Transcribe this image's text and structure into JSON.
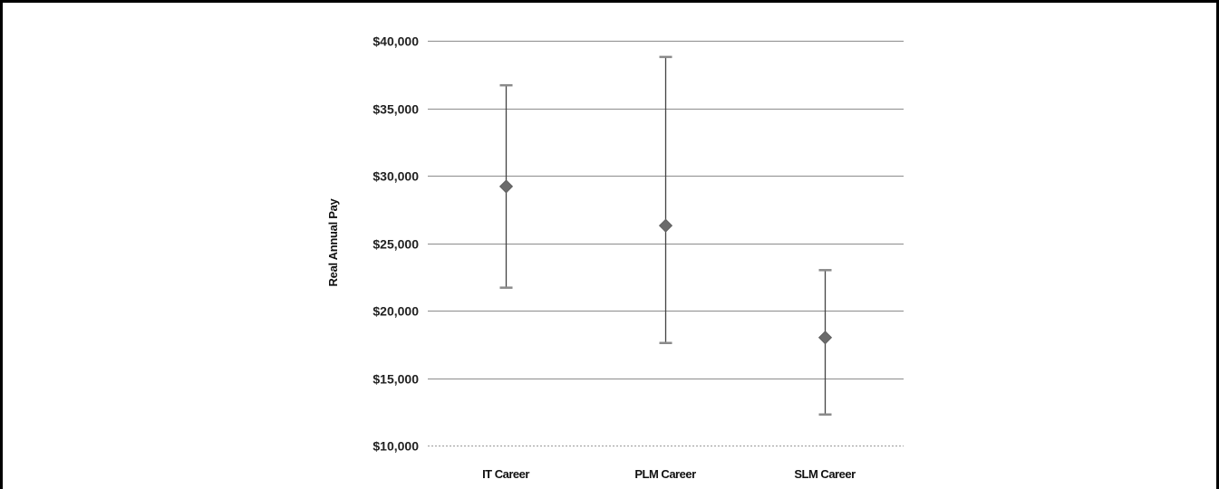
{
  "chart_data": {
    "type": "scatter",
    "title": "",
    "xlabel": "",
    "ylabel": "Real Annual Pay",
    "ylim": [
      10000,
      40000
    ],
    "y_ticks": [
      10000,
      15000,
      20000,
      25000,
      30000,
      35000,
      40000
    ],
    "y_tick_labels": [
      "$10,000",
      "$15,000",
      "$20,000",
      "$25,000",
      "$30,000",
      "$35,000",
      "$40,000"
    ],
    "categories": [
      "IT Career",
      "PLM Career",
      "SLM Career"
    ],
    "values": [
      29200,
      26300,
      18000
    ],
    "error_low": [
      21700,
      17600,
      12300
    ],
    "error_high": [
      36700,
      38800,
      23000
    ],
    "grid": true,
    "marker": "diamond",
    "marker_color": "#6b6b6b",
    "errorbar_color": "#444444",
    "gridline_color": "#8c8c8c"
  }
}
